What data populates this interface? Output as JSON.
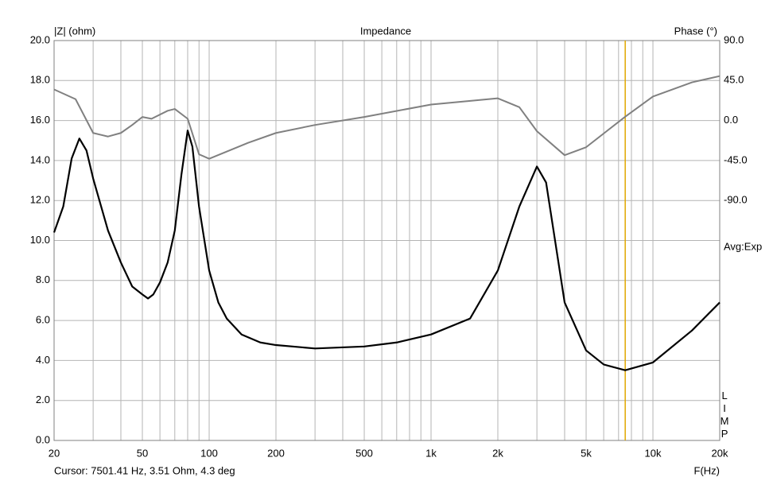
{
  "chart_data": {
    "type": "line",
    "title": "Impedance",
    "y_label": "|Z| (ohm)",
    "y2_label": "Phase (°)",
    "x_label": "F(Hz)",
    "averaging_label": "Avg:Exp",
    "app_label": "LIMP",
    "log_x": true,
    "grid": true,
    "xlim": [
      20,
      20000
    ],
    "xticks": [
      20,
      50,
      100,
      200,
      500,
      {
        "value": 1000,
        "label": "1k"
      },
      {
        "value": 2000,
        "label": "2k"
      },
      {
        "value": 5000,
        "label": "5k"
      },
      {
        "value": 10000,
        "label": "10k"
      },
      {
        "value": 20000,
        "label": "20k"
      }
    ],
    "xminor": [
      30,
      40,
      60,
      70,
      80,
      90,
      300,
      400,
      600,
      700,
      800,
      900,
      3000,
      4000,
      6000,
      7000,
      8000,
      9000
    ],
    "ylim": [
      0,
      20
    ],
    "yticks": [
      {
        "value": 0,
        "label": "0.0"
      },
      {
        "value": 2,
        "label": "2.0"
      },
      {
        "value": 4,
        "label": "4.0"
      },
      {
        "value": 6,
        "label": "6.0"
      },
      {
        "value": 8,
        "label": "8.0"
      },
      {
        "value": 10,
        "label": "10.0"
      },
      {
        "value": 12,
        "label": "12.0"
      },
      {
        "value": 14,
        "label": "14.0"
      },
      {
        "value": 16,
        "label": "16.0"
      },
      {
        "value": 18,
        "label": "18.0"
      },
      {
        "value": 20,
        "label": "20.0"
      }
    ],
    "y2lim": [
      -360,
      90
    ],
    "y2ticks": [
      {
        "value": 90,
        "label": "90.0"
      },
      {
        "value": 45,
        "label": "45.0"
      },
      {
        "value": 0,
        "label": "0.0"
      },
      {
        "value": -45,
        "label": "-45.0"
      },
      {
        "value": -90,
        "label": "-90.0"
      }
    ],
    "series": [
      {
        "name": "Impedance",
        "color": "#000000",
        "x": [
          20,
          22,
          24,
          26,
          28,
          30,
          35,
          40,
          45,
          50,
          53,
          56,
          60,
          65,
          70,
          75,
          80,
          84,
          90,
          100,
          110,
          120,
          140,
          170,
          200,
          300,
          500,
          700,
          1000,
          1500,
          2000,
          2500,
          3000,
          3300,
          4000,
          5000,
          6000,
          7500,
          10000,
          15000,
          20000
        ],
        "values": [
          10.4,
          11.7,
          14.1,
          15.1,
          14.5,
          13.1,
          10.5,
          8.9,
          7.7,
          7.3,
          7.1,
          7.3,
          7.9,
          8.9,
          10.5,
          13.3,
          15.5,
          14.7,
          11.7,
          8.5,
          6.9,
          6.1,
          5.3,
          4.9,
          4.77,
          4.6,
          4.7,
          4.9,
          5.3,
          6.1,
          8.5,
          11.7,
          13.7,
          12.9,
          6.9,
          4.5,
          3.8,
          3.51,
          3.9,
          5.5,
          6.9
        ]
      },
      {
        "name": "Phase",
        "color": "#808080",
        "axis": "y2",
        "x": [
          20,
          25,
          30,
          35,
          40,
          45,
          50,
          55,
          65,
          70,
          80,
          90,
          100,
          150,
          200,
          300,
          500,
          1000,
          2000,
          2500,
          3000,
          4000,
          5000,
          7500,
          10000,
          15000,
          20000
        ],
        "values": [
          35,
          24,
          -14,
          -18,
          -14,
          -5,
          4,
          2,
          11,
          13,
          2,
          -38,
          -43,
          -25,
          -14,
          -5,
          4,
          18,
          25,
          15,
          -12,
          -39,
          -30,
          4.3,
          27,
          43,
          50
        ]
      }
    ],
    "cursor": {
      "x": 7501.41,
      "color": "#e0a800",
      "label": "Cursor: 7501.41 Hz, 3.51 Ohm, 4.3 deg"
    }
  }
}
